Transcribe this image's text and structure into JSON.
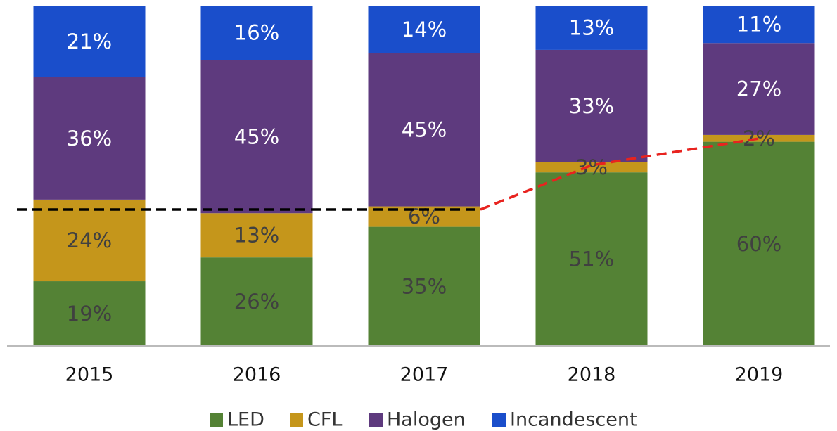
{
  "chart_data": {
    "type": "stacked_bar",
    "categories": [
      "2015",
      "2016",
      "2017",
      "2018",
      "2019"
    ],
    "ylim": [
      0,
      100
    ],
    "series": [
      {
        "name": "LED",
        "color": "#548235",
        "values": [
          19,
          26,
          35,
          51,
          60
        ],
        "value_labels": [
          "19%",
          "26%",
          "35%",
          "51%",
          "60%"
        ]
      },
      {
        "name": "CFL",
        "color": "#c5961b",
        "values": [
          24,
          13,
          6,
          3,
          2
        ],
        "value_labels": [
          "24%",
          "13%",
          "6%",
          "3%",
          "2%"
        ]
      },
      {
        "name": "Halogen",
        "color": "#5e3a7e",
        "values": [
          36,
          45,
          45,
          33,
          27
        ],
        "value_labels": [
          "36%",
          "45%",
          "45%",
          "33%",
          "27%"
        ]
      },
      {
        "name": "Incandescent",
        "color": "#1a4ecb",
        "values": [
          21,
          16,
          14,
          13,
          11
        ],
        "value_labels": [
          "21%",
          "16%",
          "14%",
          "13%",
          "11%"
        ]
      }
    ]
  }
}
